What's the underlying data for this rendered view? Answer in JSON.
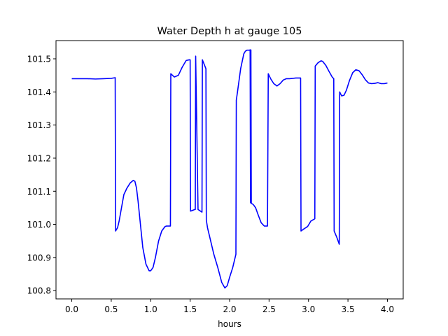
{
  "chart_data": {
    "type": "line",
    "title": "Water Depth h at gauge 105",
    "xlabel": "hours",
    "ylabel": "",
    "xlim": [
      -0.2,
      4.2
    ],
    "ylim": [
      100.775,
      101.555
    ],
    "xticks": [
      0.0,
      0.5,
      1.0,
      1.5,
      2.0,
      2.5,
      3.0,
      3.5,
      4.0
    ],
    "xtick_labels": [
      "0.0",
      "0.5",
      "1.0",
      "1.5",
      "2.0",
      "2.5",
      "3.0",
      "3.5",
      "4.0"
    ],
    "yticks": [
      100.8,
      100.9,
      101.0,
      101.1,
      101.2,
      101.3,
      101.4,
      101.5
    ],
    "ytick_labels": [
      "100.8",
      "100.9",
      "101.0",
      "101.1",
      "101.2",
      "101.3",
      "101.4",
      "101.5"
    ],
    "grid": false,
    "legend": "none",
    "series": [
      {
        "color": "#0000ff",
        "x": [
          0.0,
          0.1,
          0.2,
          0.3,
          0.4,
          0.5,
          0.55,
          0.555,
          0.58,
          0.6,
          0.63,
          0.66,
          0.7,
          0.74,
          0.78,
          0.8,
          0.82,
          0.84,
          0.87,
          0.9,
          0.94,
          0.98,
          1.0,
          1.03,
          1.06,
          1.1,
          1.14,
          1.18,
          1.2,
          1.25,
          1.255,
          1.3,
          1.35,
          1.4,
          1.45,
          1.49,
          1.5,
          1.505,
          1.56,
          1.565,
          1.57,
          1.6,
          1.65,
          1.655,
          1.7,
          1.705,
          1.72,
          1.75,
          1.8,
          1.85,
          1.9,
          1.94,
          1.97,
          2.0,
          2.04,
          2.08,
          2.085,
          2.1,
          2.14,
          2.18,
          2.2,
          2.22,
          2.25,
          2.26,
          2.265,
          2.27,
          2.275,
          2.28,
          2.3,
          2.33,
          2.36,
          2.4,
          2.44,
          2.48,
          2.49,
          2.52,
          2.56,
          2.6,
          2.64,
          2.68,
          2.72,
          2.76,
          2.8,
          2.84,
          2.88,
          2.9,
          2.905,
          2.94,
          2.99,
          3.03,
          3.08,
          3.085,
          3.12,
          3.16,
          3.18,
          3.22,
          3.26,
          3.3,
          3.32,
          3.325,
          3.36,
          3.39,
          3.395,
          3.42,
          3.45,
          3.48,
          3.52,
          3.56,
          3.6,
          3.64,
          3.68,
          3.72,
          3.76,
          3.8,
          3.84,
          3.88,
          3.92,
          3.96,
          4.0
        ],
        "y": [
          101.44,
          101.44,
          101.44,
          101.439,
          101.44,
          101.441,
          101.443,
          100.98,
          100.99,
          101.01,
          101.05,
          101.09,
          101.11,
          101.125,
          101.133,
          101.13,
          101.11,
          101.07,
          101.0,
          100.93,
          100.88,
          100.86,
          100.86,
          100.87,
          100.9,
          100.95,
          100.98,
          100.993,
          100.995,
          100.995,
          101.455,
          101.445,
          101.45,
          101.475,
          101.495,
          101.497,
          101.497,
          101.04,
          101.045,
          101.045,
          101.508,
          101.045,
          101.037,
          101.497,
          101.47,
          101.013,
          100.99,
          100.96,
          100.91,
          100.87,
          100.825,
          100.808,
          100.815,
          100.84,
          100.87,
          100.91,
          101.375,
          101.4,
          101.47,
          101.515,
          101.523,
          101.526,
          101.526,
          101.527,
          101.065,
          101.527,
          101.065,
          101.063,
          101.06,
          101.05,
          101.03,
          101.005,
          100.995,
          100.995,
          101.455,
          101.44,
          101.425,
          101.418,
          101.425,
          101.436,
          101.44,
          101.44,
          101.441,
          101.442,
          101.442,
          101.442,
          100.98,
          100.986,
          100.994,
          101.01,
          101.017,
          101.478,
          101.488,
          101.494,
          101.492,
          101.48,
          101.462,
          101.445,
          101.44,
          100.98,
          100.96,
          100.94,
          101.4,
          101.388,
          101.39,
          101.405,
          101.435,
          101.458,
          101.467,
          101.464,
          101.452,
          101.437,
          101.427,
          101.425,
          101.426,
          101.428,
          101.425,
          101.425,
          101.427
        ]
      }
    ]
  }
}
